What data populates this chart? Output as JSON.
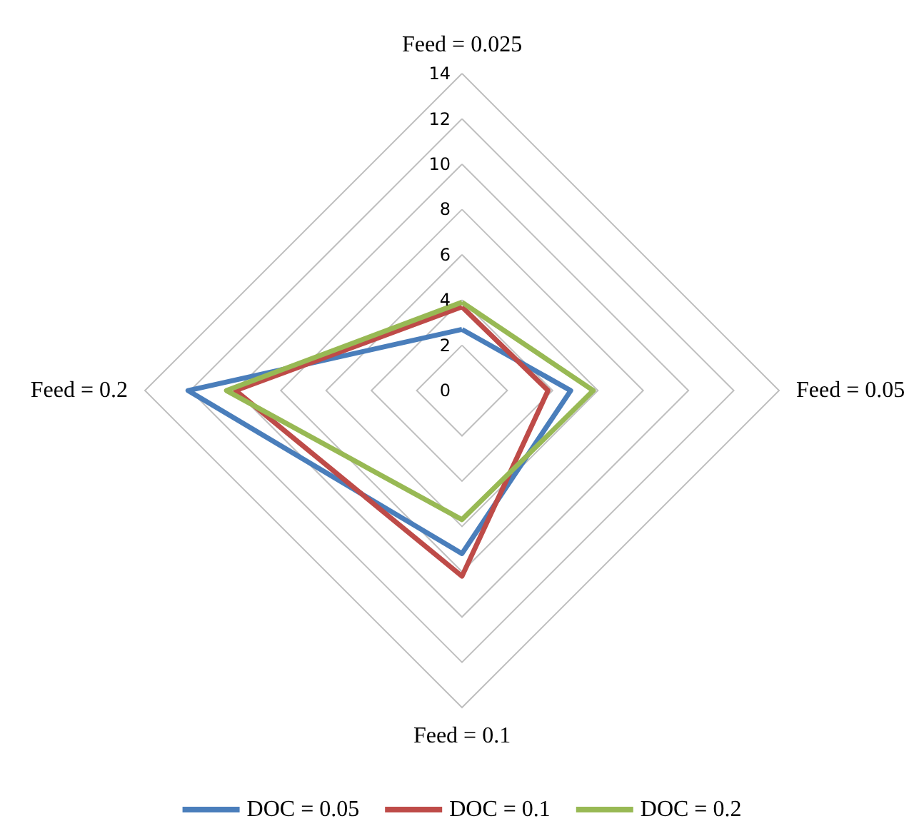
{
  "chart_data": {
    "type": "radar",
    "categories": [
      "Feed = 0.025",
      "Feed = 0.05",
      "Feed = 0.1",
      "Feed = 0.2"
    ],
    "series": [
      {
        "name": "DOC = 0.05",
        "color": "#4a7ebb",
        "values": [
          2.7,
          4.8,
          7.2,
          12.1
        ]
      },
      {
        "name": "DOC = 0.1",
        "color": "#be4b48",
        "values": [
          3.7,
          3.8,
          8.2,
          10.0
        ]
      },
      {
        "name": "DOC = 0.2",
        "color": "#98b954",
        "values": [
          3.9,
          5.8,
          5.7,
          10.4
        ]
      }
    ],
    "ylim": [
      0,
      14
    ],
    "yticks": [
      0,
      2,
      4,
      6,
      8,
      10,
      12,
      14
    ],
    "legend": "bottom",
    "grid": true,
    "marker": "none",
    "line_style": "solid"
  }
}
